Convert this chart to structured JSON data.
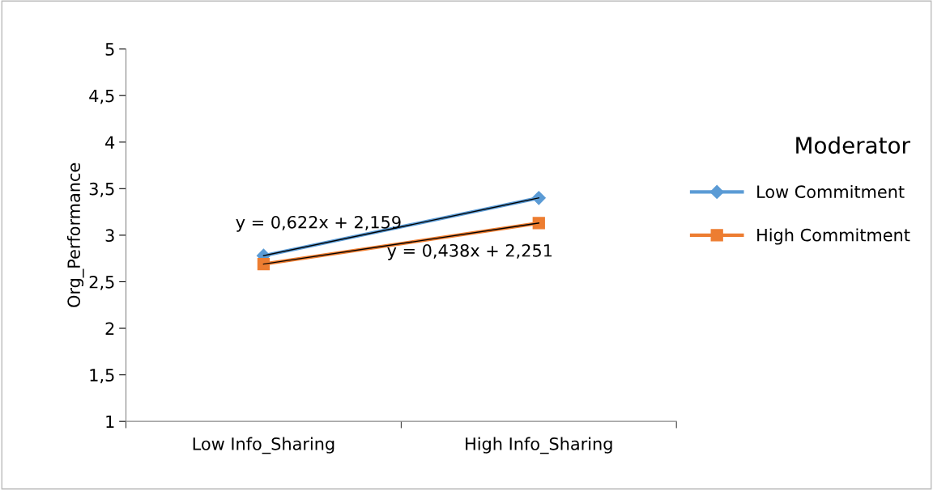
{
  "chart_data": {
    "type": "line",
    "ylabel": "Org_Performance",
    "legend_title": "Moderator",
    "legend": "right",
    "grid": false,
    "categories": [
      "Low Info_Sharing",
      "High Info_Sharing"
    ],
    "ylim": [
      1,
      5
    ],
    "yticks": [
      1,
      {
        "value": 1.5,
        "label": "1,5"
      },
      2,
      {
        "value": 2.5,
        "label": "2,5"
      },
      3,
      {
        "value": 3.5,
        "label": "3,5"
      },
      4,
      {
        "value": 4.5,
        "label": "4,5"
      },
      5
    ],
    "series": [
      {
        "name": "Low Commitment",
        "color": "#5b9bd5",
        "marker": "diamond",
        "values": [
          2.78,
          3.4
        ]
      },
      {
        "name": "High Commitment",
        "color": "#ed7d31",
        "marker": "square",
        "values": [
          2.69,
          3.13
        ]
      },
      {
        "type": "line",
        "color": "#000000",
        "marker": "none",
        "values": [
          2.78,
          3.4
        ]
      },
      {
        "type": "line",
        "color": "#000000",
        "marker": "none",
        "values": [
          2.69,
          3.13
        ]
      }
    ],
    "annotations": [
      "y = 0,622x + 2,159",
      "y = 0,438x + 2,251"
    ]
  }
}
